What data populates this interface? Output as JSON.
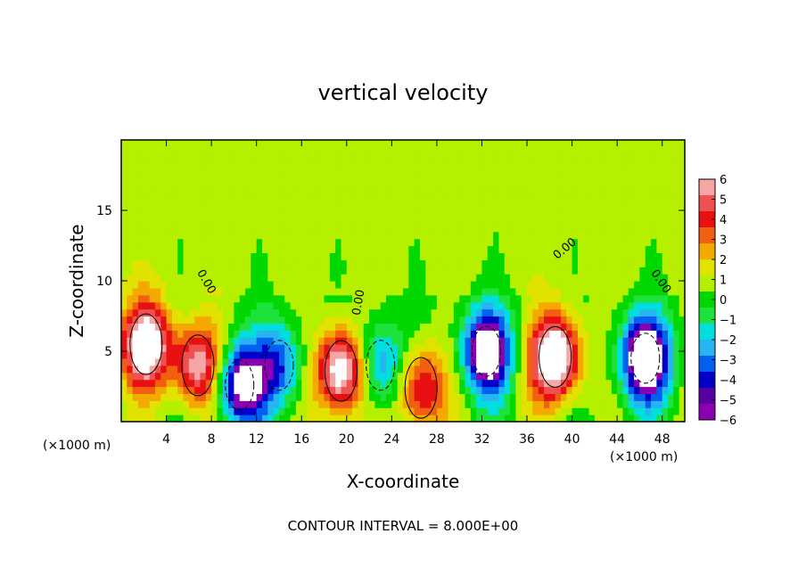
{
  "chart_data": {
    "type": "heatmap",
    "title": "vertical velocity",
    "xlabel": "X-coordinate",
    "ylabel": "Z-coordinate",
    "x_unit_left": "(×1000 m)",
    "x_unit_right": "(×1000 m)",
    "footer": "CONTOUR INTERVAL = 8.000E+00",
    "xlim": [
      0,
      50
    ],
    "ylim": [
      0,
      20
    ],
    "x_ticks": [
      4,
      8,
      12,
      16,
      20,
      24,
      28,
      32,
      36,
      40,
      44,
      48
    ],
    "x_tick_labels": [
      "4",
      "8",
      "12",
      "16",
      "20",
      "24",
      "28",
      "32",
      "36",
      "40",
      "44",
      "48"
    ],
    "y_ticks": [
      5,
      10,
      15
    ],
    "y_tick_labels": [
      "5",
      "10",
      "15"
    ],
    "colorbar": {
      "levels": [
        6,
        5,
        4,
        3,
        2,
        1,
        0,
        -1,
        -2,
        -3,
        -4,
        -5,
        -6
      ],
      "labels": [
        "6",
        "5",
        "4",
        "3",
        "2",
        "1",
        "0",
        "−1",
        "−2",
        "−3",
        "−4",
        "−5",
        "−6"
      ],
      "colors": [
        "#f7a6a6",
        "#ef5050",
        "#e81010",
        "#f06010",
        "#f4a800",
        "#e2e200",
        "#b4f000",
        "#00d800",
        "#1ee23c",
        "#00dede",
        "#28b4f0",
        "#0060f0",
        "#0000c8",
        "#5a00a0",
        "#8c00b4"
      ]
    },
    "contour_labels": [
      "0.00",
      "0.00",
      "0.00",
      "0.00",
      "0.00"
    ],
    "updrafts": [
      {
        "x": 2.2,
        "z": 5.5,
        "peak": 9
      },
      {
        "x": 6.8,
        "z": 4.0,
        "peak": 7
      },
      {
        "x": 19.5,
        "z": 3.6,
        "peak": 9
      },
      {
        "x": 26.6,
        "z": 2.4,
        "peak": 6
      },
      {
        "x": 38.5,
        "z": 4.6,
        "peak": 10
      }
    ],
    "downdrafts": [
      {
        "x": 10.5,
        "z": 2.6,
        "peak": -8
      },
      {
        "x": 14.0,
        "z": 4.0,
        "peak": -5
      },
      {
        "x": 23.0,
        "z": 4.0,
        "peak": -5
      },
      {
        "x": 32.4,
        "z": 5.0,
        "peak": -9
      },
      {
        "x": 46.5,
        "z": 4.5,
        "peak": -10
      }
    ]
  }
}
